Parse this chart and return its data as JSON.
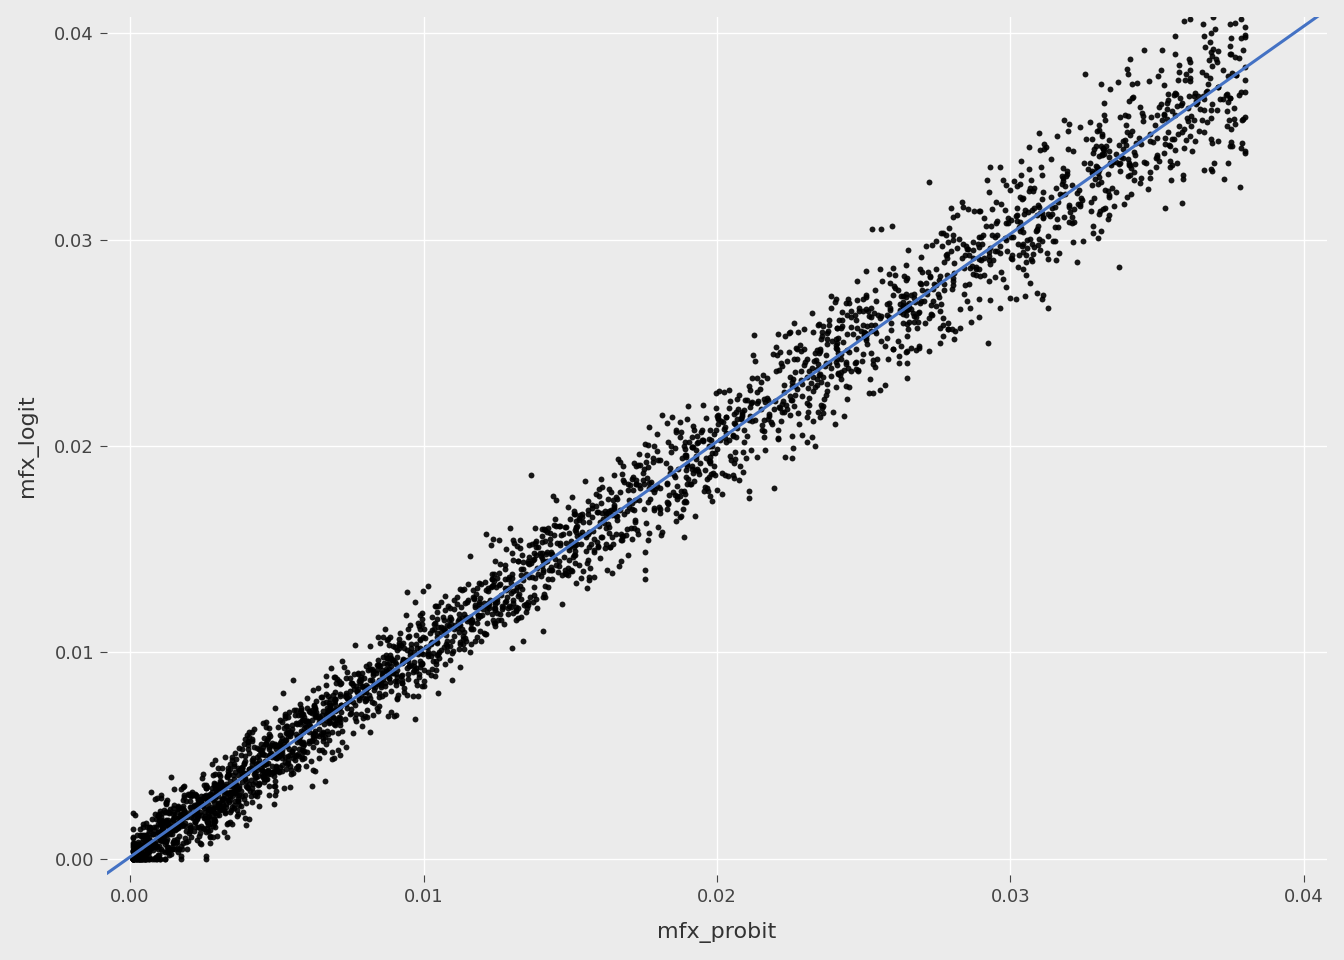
{
  "title": "",
  "xlabel": "mfx_probit",
  "ylabel": "mfx_logit",
  "xlim": [
    -0.0008,
    0.0408
  ],
  "ylim": [
    -0.0008,
    0.0408
  ],
  "xticks": [
    0.0,
    0.01,
    0.02,
    0.03,
    0.04
  ],
  "yticks": [
    0.0,
    0.01,
    0.02,
    0.03,
    0.04
  ],
  "background_color": "#EBEBEB",
  "grid_color": "#FFFFFF",
  "point_color": "#000000",
  "point_size": 18,
  "point_alpha": 0.9,
  "line_color": "#4472C4",
  "line_width": 2.2,
  "n_points": 2000,
  "seed": 42,
  "xlabel_fontsize": 16,
  "ylabel_fontsize": 16,
  "tick_fontsize": 13
}
